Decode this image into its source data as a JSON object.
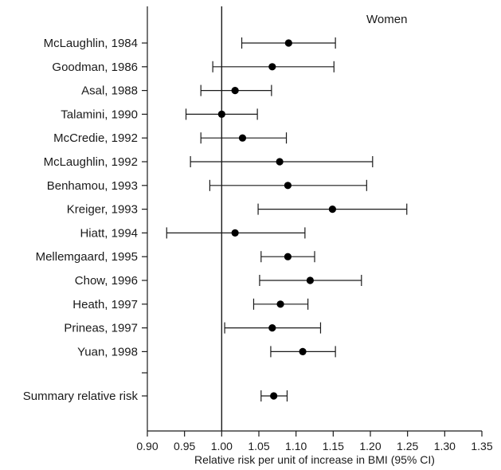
{
  "chart_data": {
    "type": "forest",
    "panel_label": "Women",
    "xlabel": "Relative risk per unit of increase in BMI (95% CI)",
    "xlim": [
      0.9,
      1.35
    ],
    "xticks": [
      "0.90",
      "0.95",
      "1.00",
      "1.05",
      "1.10",
      "1.15",
      "1.20",
      "1.25",
      "1.30",
      "1.35"
    ],
    "reference_line": 1.0,
    "studies": [
      {
        "label": "McLaughlin, 1984",
        "rr": 1.09,
        "lower": 1.027,
        "upper": 1.153
      },
      {
        "label": "Goodman, 1986",
        "rr": 1.068,
        "lower": 0.988,
        "upper": 1.151
      },
      {
        "label": "Asal, 1988",
        "rr": 1.018,
        "lower": 0.972,
        "upper": 1.067
      },
      {
        "label": "Talamini, 1990",
        "rr": 1.0,
        "lower": 0.952,
        "upper": 1.048
      },
      {
        "label": "McCredie, 1992",
        "rr": 1.028,
        "lower": 0.972,
        "upper": 1.087
      },
      {
        "label": "McLaughlin, 1992",
        "rr": 1.078,
        "lower": 0.958,
        "upper": 1.203
      },
      {
        "label": "Benhamou, 1993",
        "rr": 1.089,
        "lower": 0.984,
        "upper": 1.195
      },
      {
        "label": "Kreiger, 1993",
        "rr": 1.149,
        "lower": 1.049,
        "upper": 1.249
      },
      {
        "label": "Hiatt, 1994",
        "rr": 1.018,
        "lower": 0.926,
        "upper": 1.112
      },
      {
        "label": "Mellemgaard, 1995",
        "rr": 1.089,
        "lower": 1.053,
        "upper": 1.125
      },
      {
        "label": "Chow, 1996",
        "rr": 1.119,
        "lower": 1.051,
        "upper": 1.188
      },
      {
        "label": "Heath, 1997",
        "rr": 1.079,
        "lower": 1.043,
        "upper": 1.116
      },
      {
        "label": "Prineas, 1997",
        "rr": 1.068,
        "lower": 1.004,
        "upper": 1.133
      },
      {
        "label": "Yuan, 1998",
        "rr": 1.109,
        "lower": 1.066,
        "upper": 1.153
      }
    ],
    "summary": {
      "label": "Summary relative risk",
      "rr": 1.07,
      "lower": 1.053,
      "upper": 1.088
    }
  }
}
